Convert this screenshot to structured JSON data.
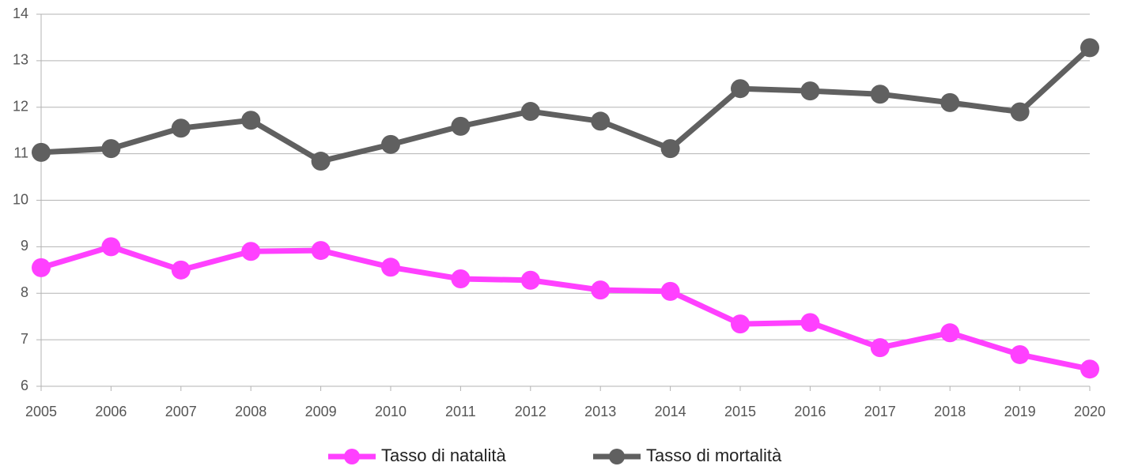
{
  "chart_data": {
    "type": "line",
    "categories": [
      "2005",
      "2006",
      "2007",
      "2008",
      "2009",
      "2010",
      "2011",
      "2012",
      "2013",
      "2014",
      "2015",
      "2016",
      "2017",
      "2018",
      "2019",
      "2020"
    ],
    "series": [
      {
        "name": "Tasso di natalità",
        "color": "#ff40ff",
        "values": [
          8.55,
          9.0,
          8.5,
          8.9,
          8.92,
          8.56,
          8.31,
          8.28,
          8.07,
          8.04,
          7.34,
          7.37,
          6.83,
          7.15,
          6.68,
          6.37
        ]
      },
      {
        "name": "Tasso di mortalità",
        "color": "#606060",
        "values": [
          11.03,
          11.11,
          11.55,
          11.72,
          10.84,
          11.2,
          11.59,
          11.91,
          11.7,
          11.11,
          12.4,
          12.35,
          12.28,
          12.1,
          11.9,
          13.28
        ]
      }
    ],
    "ylim": [
      6,
      14
    ],
    "yticks": [
      6,
      7,
      8,
      9,
      10,
      11,
      12,
      13,
      14
    ],
    "grid": true,
    "legend": "bottom"
  }
}
